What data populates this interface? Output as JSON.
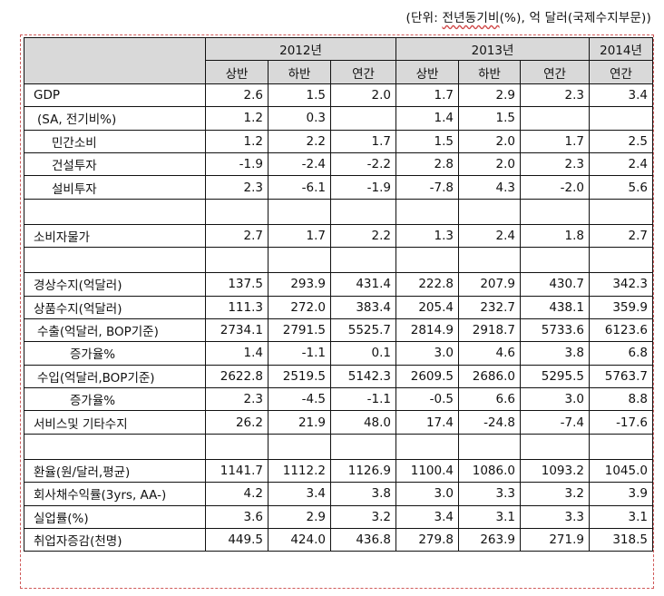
{
  "unit_note": {
    "prefix": "(단위: ",
    "underlined": "전년동기비",
    "suffix": "(%), 억 달러(국제수지부문))"
  },
  "header": {
    "years": [
      "2012년",
      "2013년",
      "2014년"
    ],
    "sub": [
      "상반",
      "하반",
      "연간",
      "상반",
      "하반",
      "연간",
      "연간"
    ]
  },
  "rows": [
    {
      "label": "GDP",
      "indent": 1,
      "values": [
        "2.6",
        "1.5",
        "2.0",
        "1.7",
        "2.9",
        "2.3",
        "3.4"
      ]
    },
    {
      "label": "(SA, 전기비%)",
      "indent": 2,
      "values": [
        "1.2",
        "0.3",
        "",
        "1.4",
        "1.5",
        "",
        ""
      ]
    },
    {
      "label": "민간소비",
      "indent": 3,
      "values": [
        "1.2",
        "2.2",
        "1.7",
        "1.5",
        "2.0",
        "1.7",
        "2.5"
      ]
    },
    {
      "label": "건설투자",
      "indent": 3,
      "values": [
        "-1.9",
        "-2.4",
        "-2.2",
        "2.8",
        "2.0",
        "2.3",
        "2.4"
      ]
    },
    {
      "label": "설비투자",
      "indent": 3,
      "values": [
        "2.3",
        "-6.1",
        "-1.9",
        "-7.8",
        "4.3",
        "-2.0",
        "5.6"
      ]
    },
    {
      "label": "",
      "blank": true,
      "values": [
        "",
        "",
        "",
        "",
        "",
        "",
        ""
      ]
    },
    {
      "label": "소비자물가",
      "indent": 1,
      "values": [
        "2.7",
        "1.7",
        "2.2",
        "1.3",
        "2.4",
        "1.8",
        "2.7"
      ]
    },
    {
      "label": "",
      "blank": true,
      "values": [
        "",
        "",
        "",
        "",
        "",
        "",
        ""
      ]
    },
    {
      "label": "경상수지(억달러)",
      "indent": 1,
      "values": [
        "137.5",
        "293.9",
        "431.4",
        "222.8",
        "207.9",
        "430.7",
        "342.3"
      ]
    },
    {
      "label": "상품수지(억달러)",
      "indent": 1,
      "values": [
        "111.3",
        "272.0",
        "383.4",
        "205.4",
        "232.7",
        "438.1",
        "359.9"
      ]
    },
    {
      "label": "수출(억달러, BOP기준)",
      "indent": 2,
      "values": [
        "2734.1",
        "2791.5",
        "5525.7",
        "2814.9",
        "2918.7",
        "5733.6",
        "6123.6"
      ]
    },
    {
      "label": "증가율%",
      "indent": 4,
      "values": [
        "1.4",
        "-1.1",
        "0.1",
        "3.0",
        "4.6",
        "3.8",
        "6.8"
      ]
    },
    {
      "label": "수입(억달러,BOP기준)",
      "indent": 2,
      "values": [
        "2622.8",
        "2519.5",
        "5142.3",
        "2609.5",
        "2686.0",
        "5295.5",
        "5763.7"
      ]
    },
    {
      "label": "증가율%",
      "indent": 4,
      "values": [
        "2.3",
        "-4.5",
        "-1.1",
        "-0.5",
        "6.6",
        "3.0",
        "8.8"
      ]
    },
    {
      "label": "서비스및  기타수지",
      "indent": 1,
      "values": [
        "26.2",
        "21.9",
        "48.0",
        "17.4",
        "-24.8",
        "-7.4",
        "-17.6"
      ]
    },
    {
      "label": "",
      "blank": true,
      "values": [
        "",
        "",
        "",
        "",
        "",
        "",
        ""
      ]
    },
    {
      "label": "환율(원/달러,평균)",
      "indent": 1,
      "values": [
        "1141.7",
        "1112.2",
        "1126.9",
        "1100.4",
        "1086.0",
        "1093.2",
        "1045.0"
      ]
    },
    {
      "label": "회사채수익률(3yrs,  AA-)",
      "indent": 1,
      "values": [
        "4.2",
        "3.4",
        "3.8",
        "3.0",
        "3.3",
        "3.2",
        "3.9"
      ]
    },
    {
      "label": "실업률(%)",
      "indent": 1,
      "values": [
        "3.6",
        "2.9",
        "3.2",
        "3.4",
        "3.1",
        "3.3",
        "3.1"
      ]
    },
    {
      "label": "취업자증감(천명)",
      "indent": 1,
      "values": [
        "449.5",
        "424.0",
        "436.8",
        "279.8",
        "263.9",
        "271.9",
        "318.5"
      ]
    }
  ]
}
